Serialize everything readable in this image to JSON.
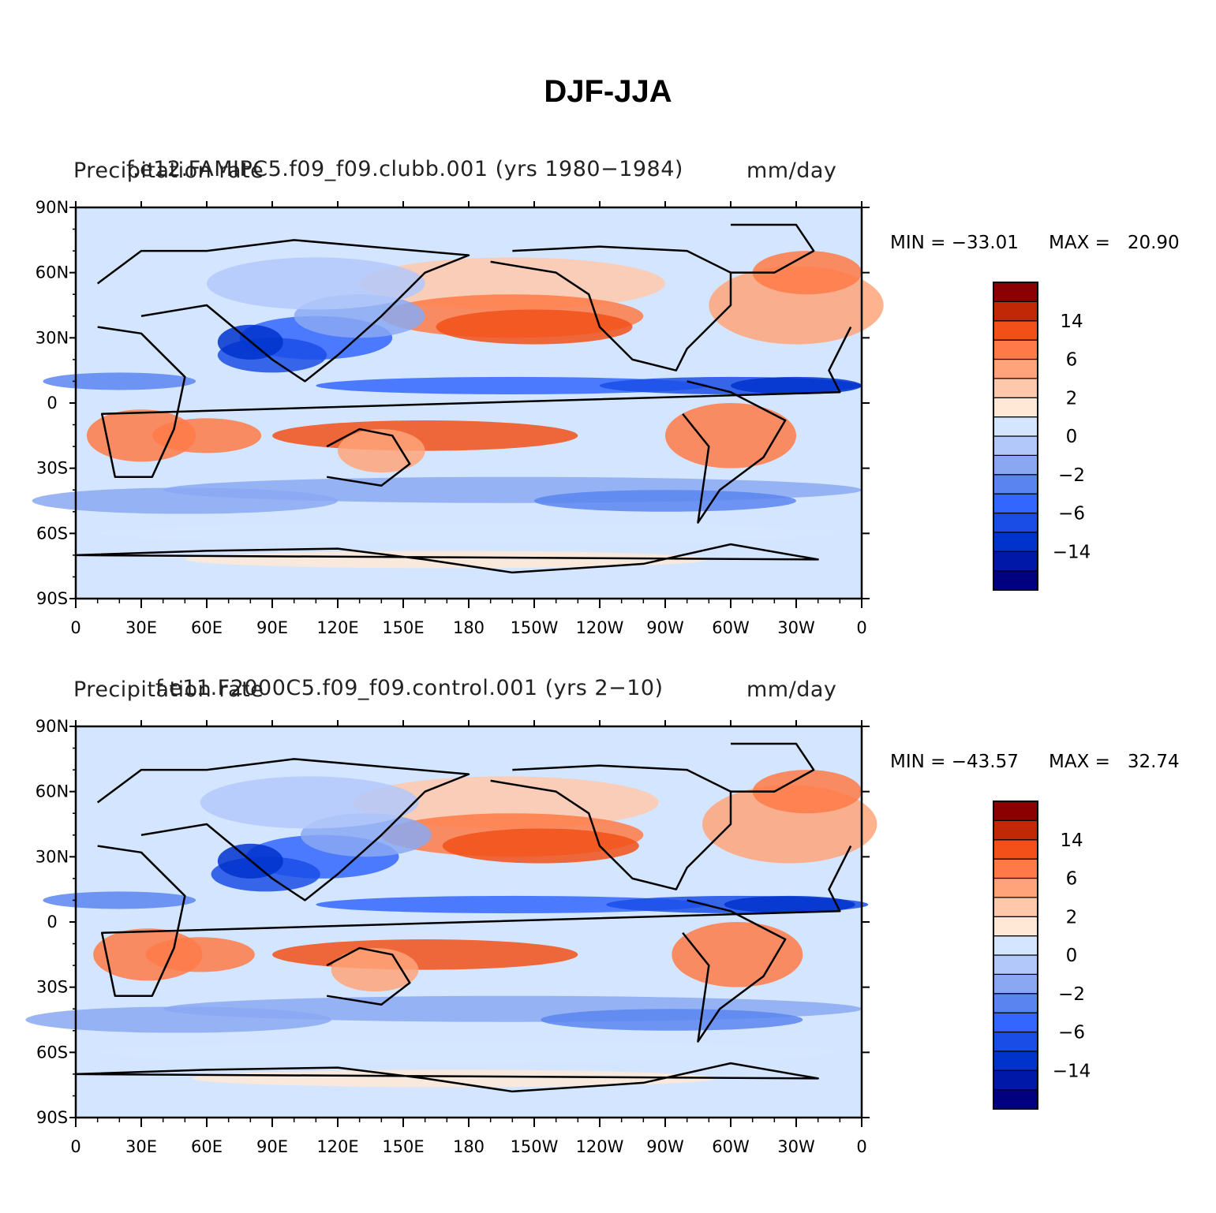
{
  "title": "DJF-JJA",
  "color_scale": [
    "#000080",
    "#0018a8",
    "#0033cc",
    "#1a4de6",
    "#3366ff",
    "#5a85f0",
    "#8aa8f2",
    "#b3c8fa",
    "#d4e6ff",
    "#ffe8d6",
    "#ffc8aa",
    "#ffa47a",
    "#ff7a48",
    "#f25018",
    "#c02806",
    "#8b0000"
  ],
  "colorbar_labels": [
    "14",
    "6",
    "2",
    "0",
    "−2",
    "−6",
    "−14"
  ],
  "lat_ticks": [
    "90N",
    "60N",
    "30N",
    "0",
    "30S",
    "60S",
    "90S"
  ],
  "lon_ticks": [
    "0",
    "30E",
    "60E",
    "90E",
    "120E",
    "150E",
    "180",
    "150W",
    "120W",
    "90W",
    "60W",
    "30W",
    "0"
  ],
  "panels": [
    {
      "left_title": "Precipitation rate",
      "center_title": "f.e12.FAMIPC5.f09_f09.clubb.001 (yrs 1980−1984)",
      "right_title": "mm/day",
      "min_label": "MIN = −33.01",
      "max_label": "MAX =   20.90"
    },
    {
      "left_title": "Precipitation rate",
      "center_title": "f.e11.F2000C5.f09_f09.control.001 (yrs 2−10)",
      "right_title": "mm/day",
      "min_label": "MIN = −43.57",
      "max_label": "MAX =   32.74"
    }
  ]
}
